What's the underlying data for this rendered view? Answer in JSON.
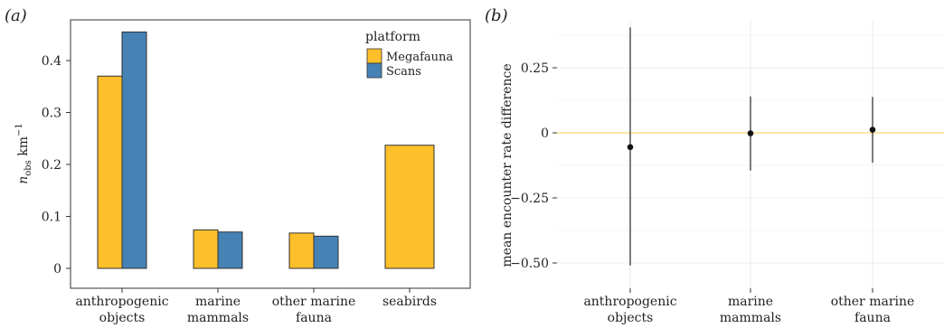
{
  "colors": {
    "megafauna": "#FDBF2A",
    "scans": "#4682B4",
    "zero_line": "#F8E08E",
    "grid": "#ECECEC",
    "error": "#444444",
    "point": "#111111"
  },
  "chart_data": [
    {
      "type": "bar",
      "panel_label_text": "a",
      "ylabel_main": "n",
      "ylabel_sub": "obs",
      "ylabel_rest": " km",
      "ylabel_sup": "−1",
      "ylim": [
        0,
        0.45
      ],
      "yticks": [
        0,
        0.1,
        0.2,
        0.3,
        0.4
      ],
      "ytick_labels": [
        "0",
        "0.1",
        "0.2",
        "0.3",
        "0.4"
      ],
      "categories": [
        {
          "lines": [
            "anthropogenic",
            "objects"
          ]
        },
        {
          "lines": [
            "marine",
            "mammals"
          ]
        },
        {
          "lines": [
            "other marine",
            "fauna"
          ]
        },
        {
          "lines": [
            "seabirds"
          ]
        }
      ],
      "legend_title": "platform",
      "legend_placement": "top-right",
      "series": [
        {
          "name": "Megafauna",
          "color_key": "megafauna",
          "values": [
            0.37,
            0.074,
            0.068,
            0.237
          ]
        },
        {
          "name": "Scans",
          "color_key": "scans",
          "values": [
            0.455,
            0.07,
            0.062,
            null
          ]
        }
      ]
    },
    {
      "type": "scatter",
      "panel_label_text": "b",
      "ylabel": "mean encounter rate difference",
      "ylim": [
        -0.5,
        0.4
      ],
      "yticks": [
        -0.5,
        -0.25,
        0,
        0.25
      ],
      "ytick_labels": [
        "−0.50",
        "−0.25",
        "0",
        "0.25"
      ],
      "categories": [
        {
          "lines": [
            "anthropogenic",
            "objects"
          ]
        },
        {
          "lines": [
            "marine",
            "mammals"
          ]
        },
        {
          "lines": [
            "other marine",
            "fauna"
          ]
        }
      ],
      "points": [
        {
          "value": -0.055,
          "low": -0.51,
          "high": 0.405
        },
        {
          "value": -0.002,
          "low": -0.145,
          "high": 0.14
        },
        {
          "value": 0.012,
          "low": -0.115,
          "high": 0.138
        }
      ]
    }
  ]
}
